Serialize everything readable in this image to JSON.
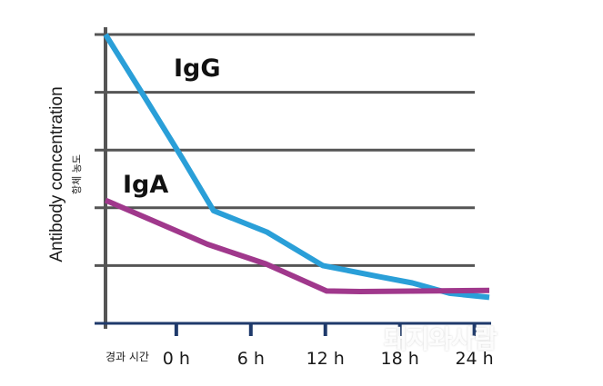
{
  "chart_data": {
    "type": "line",
    "xlabel": "경과 시간",
    "ylabel": "Antibody concentration",
    "ylabel_secondary": "항체 농도",
    "x_ticks": [
      "0 h",
      "6 h",
      "12 h",
      "18 h",
      "24 h"
    ],
    "x_positions": [
      0,
      6,
      12,
      18,
      24
    ],
    "xlim": [
      -5.7,
      25.2
    ],
    "ylim": [
      0,
      5
    ],
    "y_gridlines": [
      1,
      2,
      3,
      4,
      5
    ],
    "grid": true,
    "series": [
      {
        "name": "IgG",
        "color": "#2a9fd8",
        "points": [
          [
            -5.7,
            5.0
          ],
          [
            -2.5,
            3.9
          ],
          [
            0.5,
            2.85
          ],
          [
            3.0,
            1.95
          ],
          [
            7.3,
            1.58
          ],
          [
            11.8,
            1.0
          ],
          [
            16.5,
            0.8
          ],
          [
            19.0,
            0.7
          ],
          [
            22.0,
            0.52
          ],
          [
            25.2,
            0.45
          ]
        ]
      },
      {
        "name": "IgA",
        "color": "#a0388c",
        "points": [
          [
            -5.7,
            2.13
          ],
          [
            -2.0,
            1.79
          ],
          [
            2.5,
            1.37
          ],
          [
            7.2,
            1.03
          ],
          [
            12.1,
            0.56
          ],
          [
            14.8,
            0.55
          ],
          [
            25.2,
            0.57
          ]
        ]
      }
    ]
  },
  "watermark": "돼지와사람"
}
